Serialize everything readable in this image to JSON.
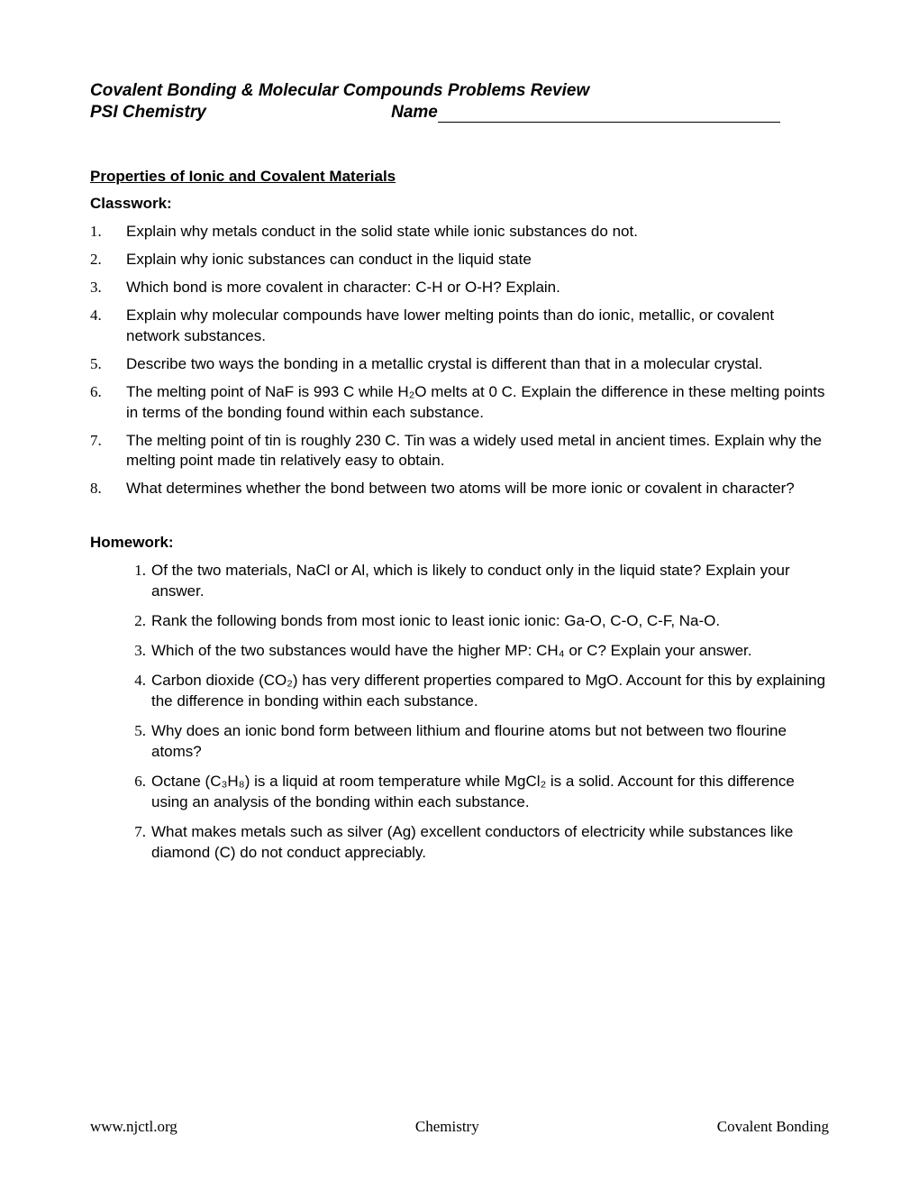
{
  "header": {
    "title": "Covalent Bonding & Molecular Compounds  Problems Review",
    "course": "PSI Chemistry",
    "name_label": "Name"
  },
  "section1": {
    "title": "Properties of Ionic and Covalent Materials",
    "classwork_label": "Classwork:",
    "items": [
      "Explain why metals conduct in the solid state while ionic substances do not.",
      "Explain why ionic substances can conduct in the liquid state",
      "Which bond is more covalent in character: C-H or O-H?  Explain.",
      "Explain why molecular compounds have lower melting points than do ionic, metallic, or covalent network substances.",
      "Describe two ways the bonding in a metallic crystal is different than that in a molecular crystal.",
      "The melting point of NaF is 993 C while H₂O melts at 0 C. Explain the difference in these melting points in terms of the bonding found within each substance.",
      "The melting point of tin is roughly 230 C. Tin was a widely used metal in ancient times. Explain why the melting point made tin relatively easy to obtain.",
      "What determines whether the bond between two atoms will be more ionic or covalent in character?"
    ]
  },
  "homework": {
    "label": "Homework:",
    "items": [
      "Of the two materials, NaCl or Al, which is likely to conduct only in the liquid state? Explain your answer.",
      "Rank the following bonds from most ionic to least ionic ionic: Ga-O, C-O, C-F, Na-O.",
      "Which of the two substances would have the higher MP: CH₄ or C? Explain your answer.",
      "Carbon dioxide (CO₂) has very different properties compared to MgO. Account for this by explaining the difference in bonding within each substance.",
      "Why does an ionic bond form between lithium and flourine atoms but not between two flourine atoms?",
      "Octane (C₃H₈) is a liquid at room temperature while MgCl₂ is a solid. Account for this difference using an analysis of the bonding within each substance.",
      "What makes metals such as silver (Ag) excellent conductors of electricity while substances like diamond (C) do not conduct appreciably."
    ]
  },
  "footer": {
    "left": "www.njctl.org",
    "center": "Chemistry",
    "right": "Covalent Bonding"
  }
}
